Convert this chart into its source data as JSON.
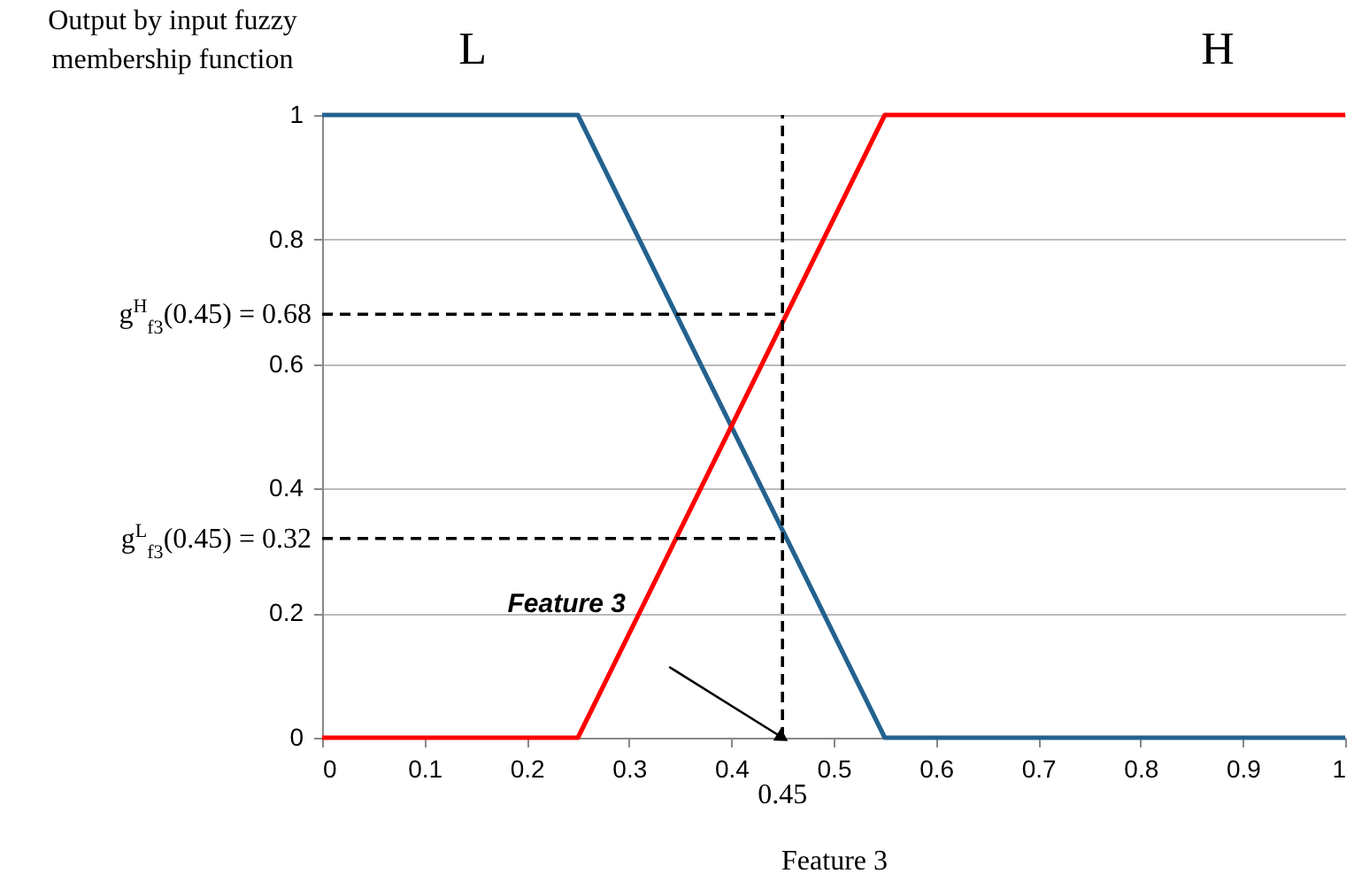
{
  "chart_data": {
    "type": "line",
    "ylabel": "Output by input fuzzy membership function",
    "xlabel": "Feature 3",
    "xlim": [
      0,
      1
    ],
    "xticks": [
      0,
      0.1,
      0.2,
      0.3,
      0.4,
      0.5,
      0.6,
      0.7,
      0.8,
      0.9,
      1
    ],
    "ylim": [
      0,
      1
    ],
    "yticks": [
      0,
      0.2,
      0.4,
      0.6,
      0.8,
      1
    ],
    "series": [
      {
        "name": "L",
        "color": "#23628f",
        "x": [
          0,
          0.25,
          0.55,
          1
        ],
        "values": [
          1,
          1,
          0,
          0
        ]
      },
      {
        "name": "H",
        "color": "#ff0000",
        "x": [
          0,
          0.25,
          0.55,
          1
        ],
        "values": [
          0,
          0,
          1,
          1
        ]
      }
    ],
    "ref_lines": [
      {
        "axis": "x",
        "value": 0.45,
        "label": "0.45",
        "line_style": "dashed",
        "color": "#000000"
      },
      {
        "axis": "y",
        "value": 0.68,
        "label": "g$^{H}$$_{f3}$(0.45) = 0.68",
        "line_style": "dashed",
        "color": "#000000"
      },
      {
        "axis": "y",
        "value": 0.32,
        "label": "g$^{L}$$_{f3}$(0.45) = 0.32",
        "line_style": "dashed",
        "color": "#000000"
      }
    ],
    "annotations": [
      "Feature 3"
    ],
    "grid": "y",
    "legend": false,
    "marker": "none",
    "line_style": "solid"
  }
}
